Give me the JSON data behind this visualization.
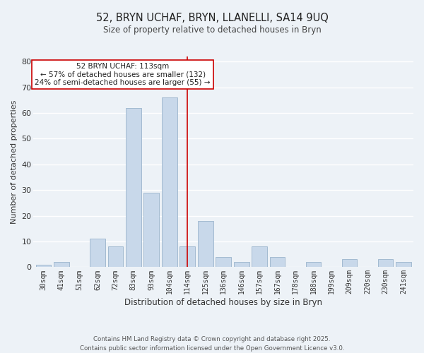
{
  "title": "52, BRYN UCHAF, BRYN, LLANELLI, SA14 9UQ",
  "subtitle": "Size of property relative to detached houses in Bryn",
  "xlabel": "Distribution of detached houses by size in Bryn",
  "ylabel": "Number of detached properties",
  "bar_labels": [
    "30sqm",
    "41sqm",
    "51sqm",
    "62sqm",
    "72sqm",
    "83sqm",
    "93sqm",
    "104sqm",
    "114sqm",
    "125sqm",
    "136sqm",
    "146sqm",
    "157sqm",
    "167sqm",
    "178sqm",
    "188sqm",
    "199sqm",
    "209sqm",
    "220sqm",
    "230sqm",
    "241sqm"
  ],
  "bar_heights": [
    1,
    2,
    0,
    11,
    8,
    62,
    29,
    66,
    8,
    18,
    4,
    2,
    8,
    4,
    0,
    2,
    0,
    3,
    0,
    3,
    2
  ],
  "bar_color": "#c8d8ea",
  "bar_edge_color": "#9ab4cc",
  "vline_x_index": 8,
  "vline_color": "#cc0000",
  "annotation_title": "52 BRYN UCHAF: 113sqm",
  "annotation_line1": "← 57% of detached houses are smaller (132)",
  "annotation_line2": "24% of semi-detached houses are larger (55) →",
  "annotation_box_facecolor": "#ffffff",
  "annotation_box_edgecolor": "#cc0000",
  "ylim": [
    0,
    82
  ],
  "yticks": [
    0,
    10,
    20,
    30,
    40,
    50,
    60,
    70,
    80
  ],
  "footer1": "Contains HM Land Registry data © Crown copyright and database right 2025.",
  "footer2": "Contains public sector information licensed under the Open Government Licence v3.0.",
  "bg_color": "#edf2f7",
  "grid_color": "#ffffff"
}
